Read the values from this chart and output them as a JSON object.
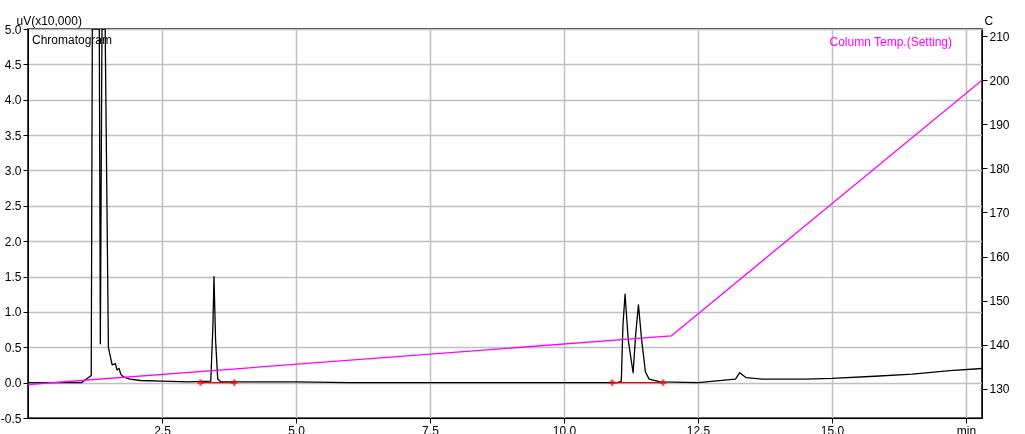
{
  "chart_data": {
    "type": "line",
    "ylabel": "uV(x10,000)",
    "y2label": "C",
    "xlim": [
      0,
      17.8
    ],
    "xticks": [
      {
        "value": 2.5,
        "label": "2.5"
      },
      {
        "value": 5,
        "label": "5.0"
      },
      {
        "value": 7.5,
        "label": "7.5"
      },
      {
        "value": 10,
        "label": "10.0"
      },
      {
        "value": 12.5,
        "label": "12.5"
      },
      {
        "value": 15,
        "label": "15.0"
      },
      {
        "value": 17.5,
        "label": "min"
      }
    ],
    "ylim": [
      -0.5,
      5.0
    ],
    "yticks": [
      {
        "value": -0.5,
        "label": "-0.5"
      },
      {
        "value": 0,
        "label": "0.0"
      },
      {
        "value": 0.5,
        "label": "0.5"
      },
      {
        "value": 1,
        "label": "1.0"
      },
      {
        "value": 1.5,
        "label": "1.5"
      },
      {
        "value": 2,
        "label": "2.0"
      },
      {
        "value": 2.5,
        "label": "2.5"
      },
      {
        "value": 3,
        "label": "3.0"
      },
      {
        "value": 3.5,
        "label": "3.5"
      },
      {
        "value": 4,
        "label": "4.0"
      },
      {
        "value": 4.5,
        "label": "4.5"
      },
      {
        "value": 5,
        "label": "5.0"
      }
    ],
    "y2lim": [
      123.4,
      211.6
    ],
    "y2ticks": [
      130,
      140,
      150,
      160,
      170,
      180,
      190,
      200,
      210
    ],
    "grid": true,
    "series": [
      {
        "name": "Chromatogram",
        "color": "#000000",
        "x": [
          0,
          0.5,
          1.0,
          1.18,
          1.2,
          1.22,
          1.27,
          1.33,
          1.35,
          1.38,
          1.4,
          1.44,
          1.5,
          1.57,
          1.63,
          1.66,
          1.7,
          1.73,
          1.78,
          1.9,
          2.1,
          2.5,
          3.0,
          3.41,
          3.45,
          3.47,
          3.5,
          3.54,
          3.6,
          4.0,
          5.0,
          6.0,
          7.0,
          8.0,
          9.0,
          10.0,
          11.0,
          11.07,
          11.1,
          11.14,
          11.2,
          11.29,
          11.34,
          11.39,
          11.45,
          11.52,
          11.59,
          11.8,
          12.5,
          13.2,
          13.28,
          13.4,
          13.7,
          14.5,
          15.0,
          15.8,
          16.5,
          17.2,
          17.8
        ],
        "values": [
          0,
          0,
          0,
          0.1,
          5.0,
          5.0,
          5.0,
          5.0,
          0.55,
          5.0,
          5.0,
          5.0,
          0.5,
          0.25,
          0.27,
          0.18,
          0.2,
          0.12,
          0.08,
          0.05,
          0.03,
          0.02,
          0.01,
          0.02,
          0.8,
          1.5,
          0.6,
          0.05,
          0.01,
          0.01,
          0.01,
          0.0,
          0.0,
          0.0,
          0.0,
          0.0,
          0.0,
          0.02,
          0.8,
          1.25,
          0.6,
          0.14,
          0.7,
          1.1,
          0.6,
          0.15,
          0.05,
          0.01,
          0.0,
          0.05,
          0.14,
          0.07,
          0.05,
          0.05,
          0.06,
          0.09,
          0.12,
          0.17,
          0.2
        ]
      },
      {
        "name": "Column Temp.(Setting)",
        "color": "#ff00ff",
        "axis": "y2",
        "x": [
          0,
          12.0,
          17.8
        ],
        "values": [
          131,
          142,
          200
        ]
      },
      {
        "color": "#ff0000",
        "marker": "cross",
        "x": [
          3.22,
          3.85
        ],
        "values": [
          0,
          0
        ]
      },
      {
        "color": "#ff0000",
        "marker": "cross",
        "x": [
          10.9,
          11.85
        ],
        "values": [
          0,
          0
        ]
      }
    ]
  }
}
